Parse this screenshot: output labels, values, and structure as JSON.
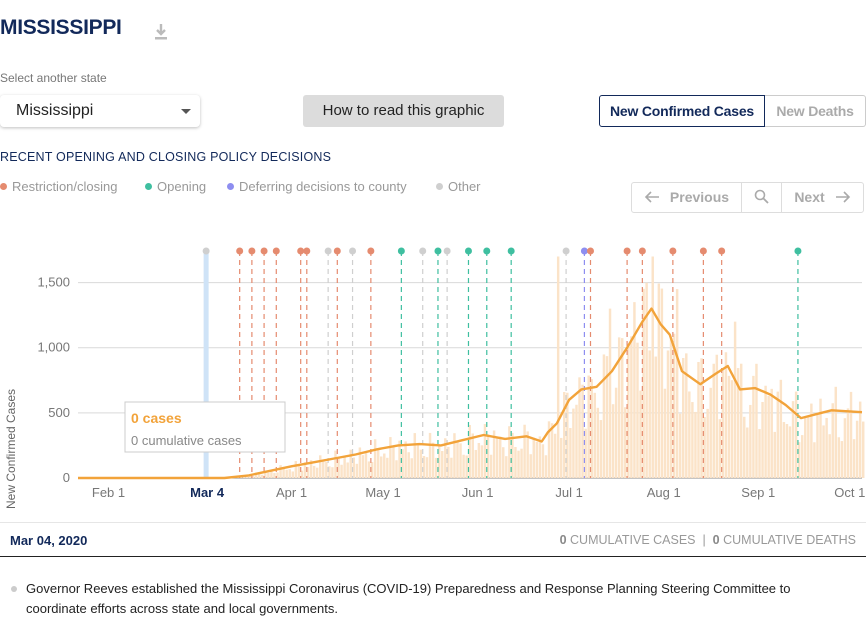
{
  "header": {
    "state_title": "MISSISSIPPI",
    "download_icon": "download-icon"
  },
  "state_select": {
    "label": "Select another state",
    "selected": "Mississippi"
  },
  "how_to_read_label": "How to read this graphic",
  "metric_toggle": {
    "cases_label": "New Confirmed Cases",
    "deaths_label": "New Deaths",
    "active": "cases"
  },
  "policy": {
    "heading": "RECENT OPENING AND CLOSING POLICY DECISIONS",
    "legend": [
      {
        "label": "Restriction/closing",
        "color": "#e58b6f"
      },
      {
        "label": "Opening",
        "color": "#3fbfa0"
      },
      {
        "label": "Deferring decisions to county",
        "color": "#8e8ef0"
      },
      {
        "label": "Other",
        "color": "#cfcfcf"
      }
    ]
  },
  "pager": {
    "prev_label": "Previous",
    "next_label": "Next",
    "search_icon": "search-icon"
  },
  "colors": {
    "cases_line": "#f2a33a",
    "bars": "#fbe3c8",
    "selected_band": "#cfe3f7",
    "navy": "#12295a"
  },
  "chart_data": {
    "type": "line",
    "ylabel": "New Confirmed Cases",
    "y_ticks": [
      0,
      500,
      1000,
      1500
    ],
    "y_tick_labels": [
      "0",
      "500",
      "1,000",
      "1,500"
    ],
    "ylim": [
      0,
      1750
    ],
    "x_range": [
      "2020-01-22",
      "2020-10-05"
    ],
    "x_ticks": [
      {
        "date": "2020-02-01",
        "label": "Feb 1"
      },
      {
        "date": "2020-03-01",
        "label": "M"
      },
      {
        "date": "2020-04-01",
        "label": "Apr 1"
      },
      {
        "date": "2020-05-01",
        "label": "May 1"
      },
      {
        "date": "2020-06-01",
        "label": "Jun 1"
      },
      {
        "date": "2020-07-01",
        "label": "Jul 1"
      },
      {
        "date": "2020-08-01",
        "label": "Aug 1"
      },
      {
        "date": "2020-09-01",
        "label": "Sep 1"
      },
      {
        "date": "2020-10-01",
        "label": "Oct 1"
      }
    ],
    "selected_date": "2020-03-04",
    "selected_label": "Mar 4",
    "tooltip": {
      "cases": "0 cases",
      "cumulative": "0 cumulative cases"
    },
    "grid": true,
    "series": [
      {
        "kind": "7-day average",
        "points": [
          [
            "2020-01-22",
            0
          ],
          [
            "2020-03-10",
            0
          ],
          [
            "2020-03-18",
            20
          ],
          [
            "2020-03-25",
            55
          ],
          [
            "2020-04-01",
            90
          ],
          [
            "2020-04-08",
            120
          ],
          [
            "2020-04-15",
            150
          ],
          [
            "2020-04-22",
            180
          ],
          [
            "2020-04-29",
            220
          ],
          [
            "2020-05-06",
            250
          ],
          [
            "2020-05-13",
            260
          ],
          [
            "2020-05-20",
            250
          ],
          [
            "2020-05-27",
            290
          ],
          [
            "2020-06-03",
            330
          ],
          [
            "2020-06-10",
            300
          ],
          [
            "2020-06-17",
            320
          ],
          [
            "2020-06-22",
            280
          ],
          [
            "2020-06-24",
            350
          ],
          [
            "2020-06-27",
            420
          ],
          [
            "2020-07-01",
            600
          ],
          [
            "2020-07-05",
            680
          ],
          [
            "2020-07-10",
            700
          ],
          [
            "2020-07-15",
            820
          ],
          [
            "2020-07-20",
            1000
          ],
          [
            "2020-07-25",
            1200
          ],
          [
            "2020-07-28",
            1300
          ],
          [
            "2020-07-31",
            1180
          ],
          [
            "2020-08-03",
            1100
          ],
          [
            "2020-08-07",
            820
          ],
          [
            "2020-08-13",
            720
          ],
          [
            "2020-08-18",
            800
          ],
          [
            "2020-08-22",
            860
          ],
          [
            "2020-08-26",
            680
          ],
          [
            "2020-08-31",
            690
          ],
          [
            "2020-09-05",
            640
          ],
          [
            "2020-09-10",
            560
          ],
          [
            "2020-09-15",
            460
          ],
          [
            "2020-09-20",
            490
          ],
          [
            "2020-09-25",
            520
          ],
          [
            "2020-10-05",
            505
          ]
        ]
      }
    ],
    "daily_bar_peaks": [
      [
        "2020-06-27",
        1700
      ],
      [
        "2020-07-14",
        1300
      ],
      [
        "2020-07-22",
        1350
      ],
      [
        "2020-07-28",
        1700
      ],
      [
        "2020-08-05",
        1450
      ],
      [
        "2020-08-24",
        1200
      ]
    ],
    "policy_events": [
      {
        "date": "2020-03-04",
        "type": "other"
      },
      {
        "date": "2020-03-15",
        "type": "restriction"
      },
      {
        "date": "2020-03-19",
        "type": "restriction"
      },
      {
        "date": "2020-03-23",
        "type": "restriction"
      },
      {
        "date": "2020-03-27",
        "type": "restriction"
      },
      {
        "date": "2020-04-04",
        "type": "restriction"
      },
      {
        "date": "2020-04-06",
        "type": "restriction"
      },
      {
        "date": "2020-04-13",
        "type": "other"
      },
      {
        "date": "2020-04-16",
        "type": "restriction"
      },
      {
        "date": "2020-04-21",
        "type": "other"
      },
      {
        "date": "2020-04-27",
        "type": "restriction"
      },
      {
        "date": "2020-05-07",
        "type": "opening"
      },
      {
        "date": "2020-05-14",
        "type": "other"
      },
      {
        "date": "2020-05-19",
        "type": "opening"
      },
      {
        "date": "2020-05-22",
        "type": "other"
      },
      {
        "date": "2020-05-29",
        "type": "opening"
      },
      {
        "date": "2020-06-04",
        "type": "opening"
      },
      {
        "date": "2020-06-12",
        "type": "opening"
      },
      {
        "date": "2020-06-30",
        "type": "other"
      },
      {
        "date": "2020-07-06",
        "type": "deferring"
      },
      {
        "date": "2020-07-08",
        "type": "restriction"
      },
      {
        "date": "2020-07-20",
        "type": "restriction"
      },
      {
        "date": "2020-07-25",
        "type": "restriction"
      },
      {
        "date": "2020-08-04",
        "type": "restriction"
      },
      {
        "date": "2020-08-14",
        "type": "restriction"
      },
      {
        "date": "2020-08-20",
        "type": "restriction"
      },
      {
        "date": "2020-09-14",
        "type": "opening"
      }
    ]
  },
  "date_bar": {
    "current_date": "Mar 04, 2020",
    "cum_cases_count": "0",
    "cum_cases_label": "CUMULATIVE CASES",
    "separator": "|",
    "cum_deaths_count": "0",
    "cum_deaths_label": "CUMULATIVE DEATHS"
  },
  "note": "Governor Reeves established the Mississippi Coronavirus (COVID-19) Preparedness and Response Planning Steering Committee to coordinate efforts across state and local governments."
}
